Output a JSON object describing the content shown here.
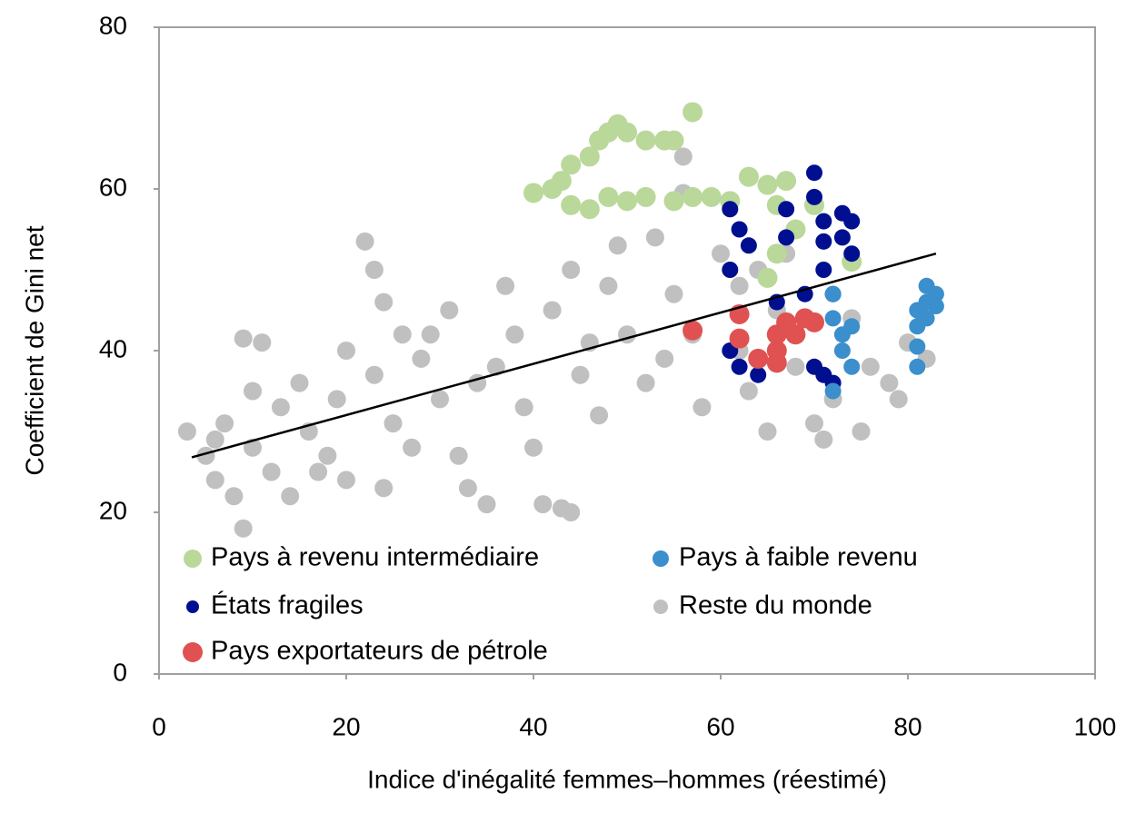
{
  "chart_data": {
    "type": "scatter",
    "xlabel": "Indice d'inégalité femmes–hommes (réestimé)",
    "ylabel": "Coefficient de Gini net",
    "xlim": [
      0,
      100
    ],
    "ylim": [
      0,
      80
    ],
    "xticks": [
      0,
      20,
      40,
      60,
      80,
      100
    ],
    "yticks": [
      0,
      20,
      40,
      60,
      80
    ],
    "legend": "lower left",
    "series": [
      {
        "name": "Reste du monde",
        "color": "#c0c0c0",
        "x": [
          3,
          5,
          6,
          8,
          9,
          9,
          11,
          7,
          10,
          12,
          14,
          13,
          15,
          16,
          18,
          20,
          19,
          20,
          22,
          23,
          24,
          23,
          25,
          27,
          26,
          28,
          30,
          31,
          32,
          33,
          35,
          36,
          37,
          38,
          39,
          40,
          41,
          43,
          44,
          42,
          44,
          45,
          47,
          48,
          49,
          50,
          52,
          53,
          55,
          56,
          56,
          57,
          58,
          60,
          62,
          63,
          65,
          66,
          68,
          70,
          71,
          72,
          74,
          75,
          76,
          78,
          79,
          80,
          82,
          29,
          34,
          46,
          54,
          62,
          17,
          24,
          10,
          6,
          67,
          64
        ],
        "y": [
          30,
          27,
          24,
          22,
          18,
          41.5,
          41,
          31,
          28,
          25,
          22,
          33,
          36,
          30,
          27,
          24,
          34,
          40,
          53.5,
          50,
          46,
          37,
          31,
          28,
          42,
          39,
          34,
          45,
          27,
          23,
          21,
          38,
          48,
          42,
          33,
          28,
          21,
          20.5,
          20,
          45,
          50,
          37,
          32,
          48,
          53,
          42,
          36,
          54,
          47,
          64,
          59.5,
          42,
          33,
          52,
          48,
          35,
          30,
          45,
          38,
          31,
          29,
          34,
          44,
          30,
          38,
          36,
          34,
          41,
          39,
          42,
          36,
          41,
          39,
          40,
          25,
          23,
          35,
          29,
          52,
          50
        ]
      },
      {
        "name": "Pays à revenu intermédiaire",
        "color": "#b9d89a",
        "x": [
          40,
          42,
          43,
          44,
          46,
          47,
          48,
          49,
          50,
          52,
          54,
          55,
          57,
          44,
          46,
          48,
          50,
          52,
          55,
          57,
          59,
          61,
          63,
          65,
          66,
          67,
          68,
          66,
          65,
          70,
          74
        ],
        "y": [
          59.5,
          60,
          61,
          63,
          64,
          66,
          67,
          68,
          67,
          66,
          66,
          66,
          69.5,
          58,
          57.5,
          59,
          58.5,
          59,
          58.5,
          59,
          59,
          58.5,
          61.5,
          60.5,
          58,
          61,
          55,
          52,
          49,
          58,
          51
        ]
      },
      {
        "name": "États fragiles",
        "color": "#000f8f",
        "x": [
          61,
          62,
          63,
          61,
          67,
          67,
          70,
          70,
          71,
          71,
          71,
          72,
          73,
          73,
          74,
          74,
          61,
          62,
          64,
          68,
          70,
          71,
          72,
          66,
          69
        ],
        "y": [
          57.5,
          55,
          53,
          50,
          57.5,
          54,
          62,
          59,
          56,
          53.5,
          50,
          47,
          57,
          54,
          52,
          56,
          40,
          38,
          37,
          42,
          38,
          37,
          36,
          46,
          47
        ]
      },
      {
        "name": "Pays à faible revenu",
        "color": "#3a8fcc",
        "x": [
          72,
          72,
          73,
          74,
          73,
          74,
          72,
          81,
          81,
          81,
          82,
          82,
          83,
          82,
          83,
          81
        ],
        "y": [
          47,
          44,
          42,
          43,
          40,
          38,
          35,
          45,
          43,
          40.5,
          48,
          46,
          47,
          44,
          45.5,
          38
        ]
      },
      {
        "name": "Pays exportateurs de pétrole",
        "color": "#e05252",
        "x": [
          57,
          62,
          62,
          64,
          66,
          66,
          67,
          68,
          69,
          70,
          66
        ],
        "y": [
          42.5,
          44.5,
          41.5,
          39,
          40,
          42,
          43.5,
          42,
          44,
          43.5,
          38.5
        ]
      }
    ],
    "trend_line": {
      "color": "#000000",
      "x": [
        3.5,
        83
      ],
      "y": [
        26.8,
        52
      ]
    }
  }
}
